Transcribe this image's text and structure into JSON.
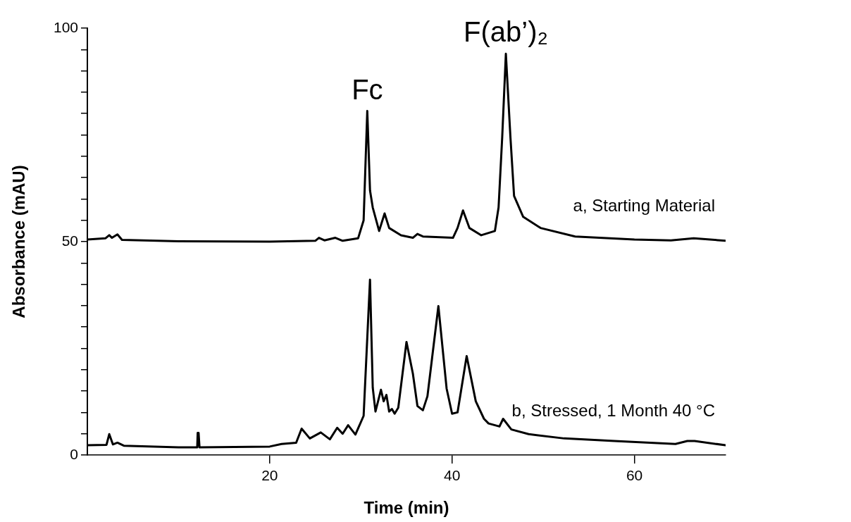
{
  "chart_data": {
    "type": "line",
    "xlabel": "Time (min)",
    "ylabel": "Absorbance (mAU)",
    "xlim": [
      0,
      70
    ],
    "xticks": [
      20,
      40,
      60
    ],
    "ylim": [
      0,
      100
    ],
    "yticks": [
      0,
      {
        "value": 5,
        "label": null
      },
      {
        "value": 10,
        "label": null
      },
      {
        "value": 15,
        "label": null
      },
      {
        "value": 20,
        "label": null
      },
      {
        "value": 25,
        "label": null
      },
      {
        "value": 30,
        "label": null
      },
      {
        "value": 35,
        "label": null
      },
      {
        "value": 40,
        "label": null
      },
      {
        "value": 45,
        "label": null
      },
      50,
      {
        "value": 55,
        "label": null
      },
      {
        "value": 60,
        "label": null
      },
      {
        "value": 65,
        "label": null
      },
      {
        "value": 70,
        "label": null
      },
      {
        "value": 75,
        "label": null
      },
      {
        "value": 80,
        "label": null
      },
      {
        "value": 85,
        "label": null
      },
      {
        "value": 90,
        "label": null
      },
      {
        "value": 95,
        "label": null
      },
      100
    ],
    "grid": false,
    "legend": false,
    "marker": "none",
    "line_style": "solid",
    "annotations": [
      {
        "text": "Fc",
        "x": 30.7,
        "y": 80.6
      },
      {
        "text": "F(ab’)₂",
        "x": 45.9,
        "y": 94
      }
    ],
    "series": [
      {
        "name": "a, Starting Material",
        "color": "#000000",
        "x": [
          0,
          2.0,
          2.4,
          2.7,
          3.3,
          3.8,
          10,
          20,
          25,
          25.4,
          26,
          27.2,
          28,
          29.7,
          30.3,
          30.7,
          31.0,
          31.3,
          32.0,
          32.6,
          33.1,
          34.4,
          35.7,
          36.2,
          36.8,
          40.1,
          40.6,
          41.2,
          41.9,
          43.2,
          44.7,
          45.1,
          45.5,
          45.9,
          46.4,
          46.8,
          47.8,
          49.7,
          53.5,
          60,
          64,
          66.5,
          70
        ],
        "values": [
          50.5,
          50.8,
          51.5,
          50.9,
          51.7,
          50.4,
          50.1,
          50.0,
          50.2,
          50.9,
          50.3,
          50.9,
          50.2,
          50.8,
          55,
          80.6,
          62,
          58,
          52.5,
          56.6,
          53.2,
          51.5,
          50.9,
          51.8,
          51.2,
          50.9,
          53.2,
          57.3,
          53.2,
          51.5,
          52.5,
          58,
          74.5,
          94,
          74.5,
          60.7,
          55.8,
          53.2,
          51.2,
          50.5,
          50.3,
          50.8,
          50.2
        ]
      },
      {
        "name": "b, Stressed, 1 Month 40 °C",
        "color": "#000000",
        "x": [
          0,
          2.1,
          2.4,
          2.8,
          3.3,
          4,
          10,
          12.05,
          12.1,
          12.2,
          12.3,
          20,
          21.3,
          22.9,
          23.5,
          24.4,
          25.6,
          26.6,
          27.4,
          28.0,
          28.6,
          29.4,
          30.3,
          31.0,
          31.3,
          31.6,
          32.2,
          32.5,
          32.8,
          33.1,
          33.4,
          33.7,
          34.1,
          35.0,
          35.7,
          36.2,
          36.8,
          37.3,
          38.5,
          39.4,
          40.0,
          40.6,
          41.6,
          42.6,
          43.5,
          44.0,
          45.2,
          45.6,
          46.5,
          48.4,
          52.3,
          57.8,
          64.5,
          65.8,
          66.6,
          70
        ],
        "values": [
          2.3,
          2.4,
          4.9,
          2.5,
          2.9,
          2.2,
          1.8,
          1.8,
          5.2,
          5.2,
          1.8,
          2.0,
          2.6,
          2.9,
          6.2,
          3.9,
          5.3,
          3.7,
          6.4,
          5.0,
          7.0,
          4.8,
          9.2,
          41.1,
          15.8,
          10.2,
          15.3,
          12.6,
          14.1,
          10.2,
          10.8,
          9.7,
          11.1,
          26.5,
          19.1,
          11.5,
          10.5,
          13.8,
          34.9,
          15.6,
          9.7,
          10.0,
          23.2,
          12.6,
          8.5,
          7.4,
          6.7,
          8.5,
          6.0,
          4.9,
          3.9,
          3.3,
          2.6,
          3.3,
          3.3,
          2.3
        ]
      }
    ]
  }
}
